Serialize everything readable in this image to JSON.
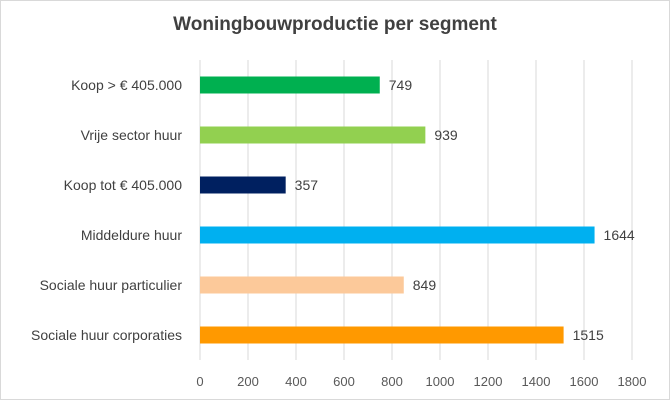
{
  "chart_data": {
    "type": "bar",
    "orientation": "horizontal",
    "title": "Woningbouwproductie  per segment",
    "xlabel": "",
    "ylabel": "",
    "categories": [
      "Koop > € 405.000",
      "Vrije sector huur",
      "Koop tot € 405.000",
      "Middeldure huur",
      "Sociale huur particulier",
      "Sociale huur corporaties"
    ],
    "values": [
      749,
      939,
      357,
      1644,
      849,
      1515
    ],
    "colors": [
      "#00b050",
      "#92d050",
      "#002060",
      "#00b0f0",
      "#fcc99a",
      "#ff9900"
    ],
    "xlim": [
      0,
      1800
    ],
    "xticks": [
      0,
      200,
      400,
      600,
      800,
      1000,
      1200,
      1400,
      1600,
      1800
    ],
    "grid": "vertical",
    "data_labels": true,
    "legend": "none"
  }
}
